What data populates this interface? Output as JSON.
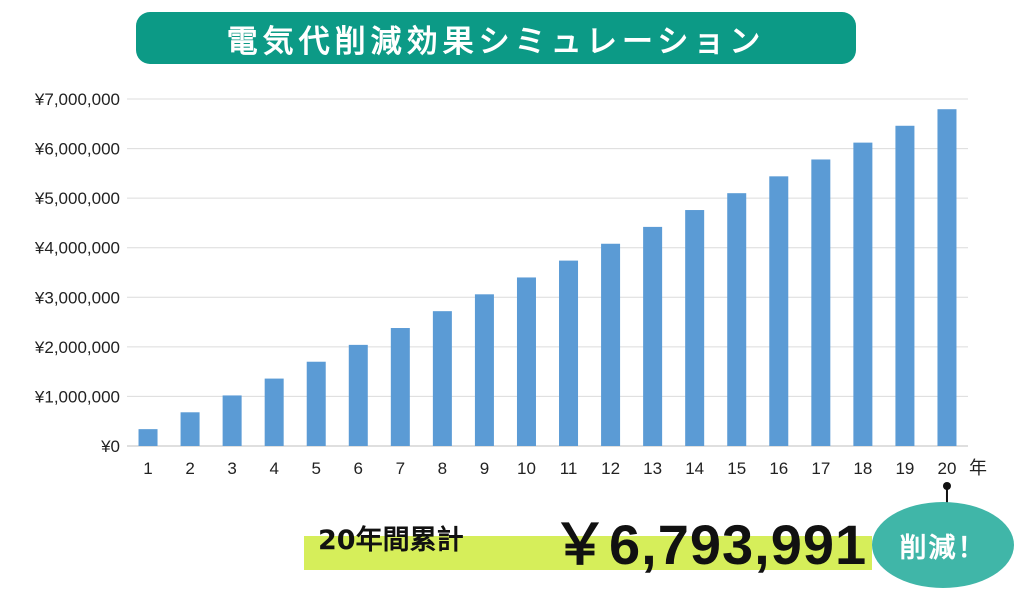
{
  "title": "電気代削減効果シミュレーション",
  "chart_data": {
    "type": "bar",
    "categories": [
      "1",
      "2",
      "3",
      "4",
      "5",
      "6",
      "7",
      "8",
      "9",
      "10",
      "11",
      "12",
      "13",
      "14",
      "15",
      "16",
      "17",
      "18",
      "19",
      "20"
    ],
    "values": [
      340000,
      680000,
      1020000,
      1360000,
      1700000,
      2040000,
      2380000,
      2720000,
      3060000,
      3400000,
      3740000,
      4080000,
      4420000,
      4760000,
      5100000,
      5440000,
      5780000,
      6120000,
      6460000,
      6793991
    ],
    "x_unit": "年",
    "yticks": [
      "¥0",
      "¥1,000,000",
      "¥2,000,000",
      "¥3,000,000",
      "¥4,000,000",
      "¥5,000,000",
      "¥6,000,000",
      "¥7,000,000"
    ],
    "ylim": [
      0,
      7000000
    ],
    "grid": true,
    "bar_color": "#5b9bd5"
  },
  "summary": {
    "label": "20年間累計",
    "value": "￥6,793,991",
    "highlight_color": "#d6ee5a"
  },
  "badge": {
    "text": "削減！",
    "color": "#40b6a8"
  },
  "banner_color": "#0c9a86"
}
